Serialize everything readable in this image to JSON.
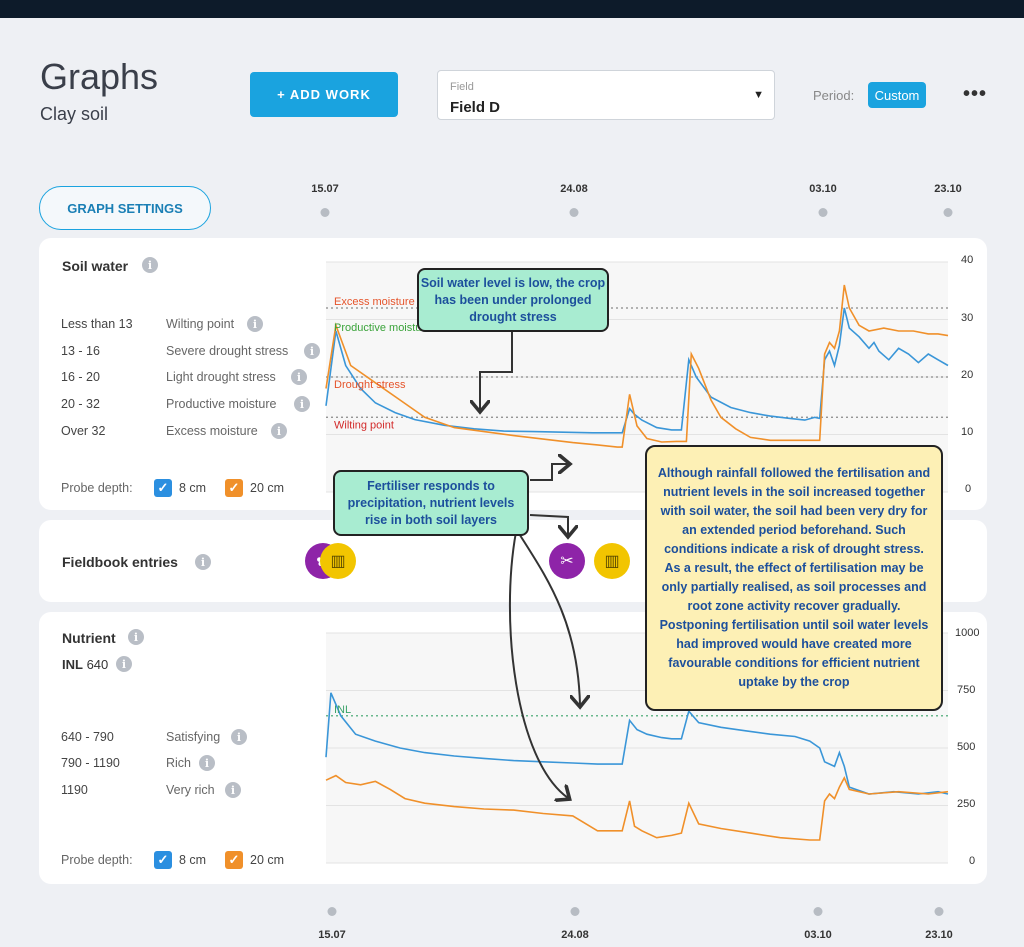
{
  "page": {
    "title": "Graphs",
    "subtitle": "Clay soil"
  },
  "toolbar": {
    "add_work_label": "+ ADD WORK",
    "field_label": "Field",
    "field_value": "Field D",
    "period_label": "Period:",
    "period_value": "Custom",
    "more_label": "•••",
    "graph_settings_label": "GRAPH SETTINGS"
  },
  "timeline": {
    "dates": [
      "15.07",
      "24.08",
      "03.10",
      "23.10"
    ]
  },
  "soil_water": {
    "title": "Soil water",
    "legend": [
      {
        "range": "Less than 13",
        "name": "Wilting point"
      },
      {
        "range": "13 - 16",
        "name": "Severe drought stress"
      },
      {
        "range": "16 - 20",
        "name": "Light drought stress"
      },
      {
        "range": "20 - 32",
        "name": "Productive moisture"
      },
      {
        "range": "Over 32",
        "name": "Excess moisture"
      }
    ],
    "probe_label": "Probe depth:",
    "depth1": "8 cm",
    "depth2": "20 cm",
    "zone_labels": {
      "excess": "Excess moisture",
      "productive": "Productive moisture",
      "drought": "Drought stress",
      "wilting": "Wilting point"
    }
  },
  "fieldbook": {
    "title": "Fieldbook entries"
  },
  "nutrient": {
    "title": "Nutrient",
    "inl_label": "INL",
    "inl_value": "640",
    "legend": [
      {
        "range": "640 - 790",
        "name": "Satisfying"
      },
      {
        "range": "790 - 1190",
        "name": "Rich"
      },
      {
        "range": "1190",
        "name": "Very rich"
      }
    ],
    "probe_label": "Probe depth:",
    "depth1": "8 cm",
    "depth2": "20 cm",
    "inl_line_label": "INL"
  },
  "callouts": {
    "soil_low": "Soil water level is low, the crop has been under prolonged drought stress",
    "fertiliser": "Fertiliser responds to precipitation, nutrient levels rise in both soil layers",
    "rainfall": "Although rainfall followed the fertilisation and nutrient levels in the soil increased together with soil water, the soil had been very dry for an extended period beforehand. Such conditions indicate a risk of drought stress. As a result, the effect of fertilisation may be only partially realised, as soil processes and root zone activity recover gradually. Postponing fertilisation until soil water levels had improved would have created more favourable conditions for efficient nutrient uptake by the crop"
  },
  "colors": {
    "accent": "#1aa3df",
    "series_8cm": "#3a96d8",
    "series_20cm": "#f0902a",
    "callout_green": "#a8ecd1",
    "callout_yellow": "#fdf0b5"
  },
  "chart_data": [
    {
      "type": "line",
      "name": "Soil water",
      "x_ticks": [
        "15.07",
        "24.08",
        "03.10",
        "23.10"
      ],
      "ylim": [
        0,
        40
      ],
      "yticks": [
        0,
        10,
        20,
        30,
        40
      ],
      "thresholds": [
        {
          "label": "Excess moisture",
          "value": 32
        },
        {
          "label": "Drought stress",
          "value": 20
        },
        {
          "label": "Wilting point",
          "value": 13
        }
      ],
      "series": [
        {
          "name": "8 cm",
          "color": "#3a96d8",
          "points": [
            [
              0,
              15
            ],
            [
              2,
              28
            ],
            [
              4,
              22
            ],
            [
              7,
              18
            ],
            [
              10,
              15.5
            ],
            [
              14,
              13.8
            ],
            [
              18,
              12.6
            ],
            [
              24,
              11.6
            ],
            [
              30,
              11.0
            ],
            [
              36,
              10.6
            ],
            [
              42,
              10.5
            ],
            [
              48,
              10.4
            ],
            [
              54,
              10.3
            ],
            [
              58,
              10.3
            ],
            [
              60,
              10.3
            ],
            [
              61.5,
              14.5
            ],
            [
              62.5,
              13.5
            ],
            [
              64,
              12.5
            ],
            [
              67,
              11.2
            ],
            [
              70,
              10.8
            ],
            [
              72,
              10.8
            ],
            [
              73.5,
              23
            ],
            [
              75,
              20
            ],
            [
              78,
              16.5
            ],
            [
              82,
              14.7
            ],
            [
              86,
              13.8
            ],
            [
              90,
              13.2
            ],
            [
              94,
              12.8
            ],
            [
              97,
              12.5
            ],
            [
              99,
              13
            ],
            [
              100,
              12.8
            ],
            [
              101,
              23
            ],
            [
              102,
              24.5
            ],
            [
              103,
              22
            ],
            [
              104,
              25.5
            ],
            [
              105,
              32
            ],
            [
              106,
              28.5
            ],
            [
              108,
              27
            ],
            [
              110,
              25
            ],
            [
              111,
              26
            ],
            [
              112,
              24.5
            ],
            [
              114,
              23
            ],
            [
              116,
              25
            ],
            [
              118,
              24
            ],
            [
              120,
              22.5
            ],
            [
              122,
              24
            ],
            [
              124,
              23
            ],
            [
              126,
              22
            ]
          ]
        },
        {
          "name": "20 cm",
          "color": "#f0902a",
          "points": [
            [
              0,
              18
            ],
            [
              2,
              29
            ],
            [
              5,
              22
            ],
            [
              10,
              19
            ],
            [
              15,
              16
            ],
            [
              20,
              13
            ],
            [
              26,
              11.2
            ],
            [
              32,
              10.5
            ],
            [
              38,
              9.8
            ],
            [
              44,
              9.2
            ],
            [
              50,
              8.6
            ],
            [
              55,
              8.2
            ],
            [
              59,
              7.8
            ],
            [
              60,
              7.8
            ],
            [
              61.5,
              17
            ],
            [
              63,
              11.5
            ],
            [
              65,
              9.3
            ],
            [
              68,
              8.7
            ],
            [
              71,
              8.8
            ],
            [
              73,
              8.8
            ],
            [
              74,
              24
            ],
            [
              75.5,
              21.5
            ],
            [
              78,
              16
            ],
            [
              80,
              13
            ],
            [
              83,
              11
            ],
            [
              86,
              9.5
            ],
            [
              90,
              9
            ],
            [
              95,
              9
            ],
            [
              99,
              9
            ],
            [
              100,
              9
            ],
            [
              101,
              24
            ],
            [
              102,
              26
            ],
            [
              103,
              25
            ],
            [
              104,
              28
            ],
            [
              105,
              36
            ],
            [
              106,
              32
            ],
            [
              108,
              29
            ],
            [
              110,
              28
            ],
            [
              113,
              28.5
            ],
            [
              116,
              28
            ],
            [
              119,
              28
            ],
            [
              122,
              27.5
            ],
            [
              124,
              27.5
            ],
            [
              126,
              27.2
            ]
          ]
        }
      ]
    },
    {
      "type": "line",
      "name": "Nutrient",
      "x_ticks": [
        "15.07",
        "24.08",
        "03.10",
        "23.10"
      ],
      "ylim": [
        0,
        1000
      ],
      "yticks": [
        0,
        250,
        500,
        750,
        1000
      ],
      "thresholds": [
        {
          "label": "INL",
          "value": 640
        }
      ],
      "series": [
        {
          "name": "8 cm",
          "color": "#3a96d8",
          "points": [
            [
              0,
              460
            ],
            [
              1,
              740
            ],
            [
              3,
              640
            ],
            [
              6,
              560
            ],
            [
              10,
              530
            ],
            [
              15,
              500
            ],
            [
              20,
              480
            ],
            [
              26,
              465
            ],
            [
              32,
              455
            ],
            [
              38,
              445
            ],
            [
              44,
              440
            ],
            [
              50,
              435
            ],
            [
              55,
              430
            ],
            [
              59,
              430
            ],
            [
              60,
              430
            ],
            [
              61.5,
              620
            ],
            [
              63,
              580
            ],
            [
              65,
              560
            ],
            [
              68,
              545
            ],
            [
              70,
              540
            ],
            [
              72,
              540
            ],
            [
              73.5,
              660
            ],
            [
              75.5,
              610
            ],
            [
              80,
              590
            ],
            [
              85,
              575
            ],
            [
              90,
              560
            ],
            [
              95,
              550
            ],
            [
              98,
              530
            ],
            [
              100,
              500
            ],
            [
              101,
              440
            ],
            [
              103,
              420
            ],
            [
              104,
              480
            ],
            [
              105,
              420
            ],
            [
              106,
              330
            ],
            [
              110,
              300
            ],
            [
              115,
              310
            ],
            [
              120,
              300
            ],
            [
              124,
              310
            ],
            [
              126,
              300
            ]
          ]
        },
        {
          "name": "20 cm",
          "color": "#f0902a",
          "points": [
            [
              0,
              360
            ],
            [
              2,
              380
            ],
            [
              4,
              350
            ],
            [
              7,
              340
            ],
            [
              10,
              355
            ],
            [
              13,
              320
            ],
            [
              16,
              280
            ],
            [
              20,
              260
            ],
            [
              26,
              245
            ],
            [
              32,
              235
            ],
            [
              38,
              230
            ],
            [
              44,
              215
            ],
            [
              50,
              205
            ],
            [
              55,
              140
            ],
            [
              58,
              140
            ],
            [
              60,
              140
            ],
            [
              61.5,
              270
            ],
            [
              62.5,
              160
            ],
            [
              64,
              140
            ],
            [
              67,
              110
            ],
            [
              70,
              120
            ],
            [
              72,
              130
            ],
            [
              73.5,
              260
            ],
            [
              75.5,
              170
            ],
            [
              80,
              150
            ],
            [
              86,
              130
            ],
            [
              92,
              110
            ],
            [
              98,
              100
            ],
            [
              100,
              100
            ],
            [
              101,
              270
            ],
            [
              102,
              300
            ],
            [
              103,
              280
            ],
            [
              104,
              330
            ],
            [
              105,
              370
            ],
            [
              106,
              320
            ],
            [
              110,
              300
            ],
            [
              116,
              310
            ],
            [
              122,
              300
            ],
            [
              126,
              310
            ]
          ]
        }
      ]
    }
  ]
}
